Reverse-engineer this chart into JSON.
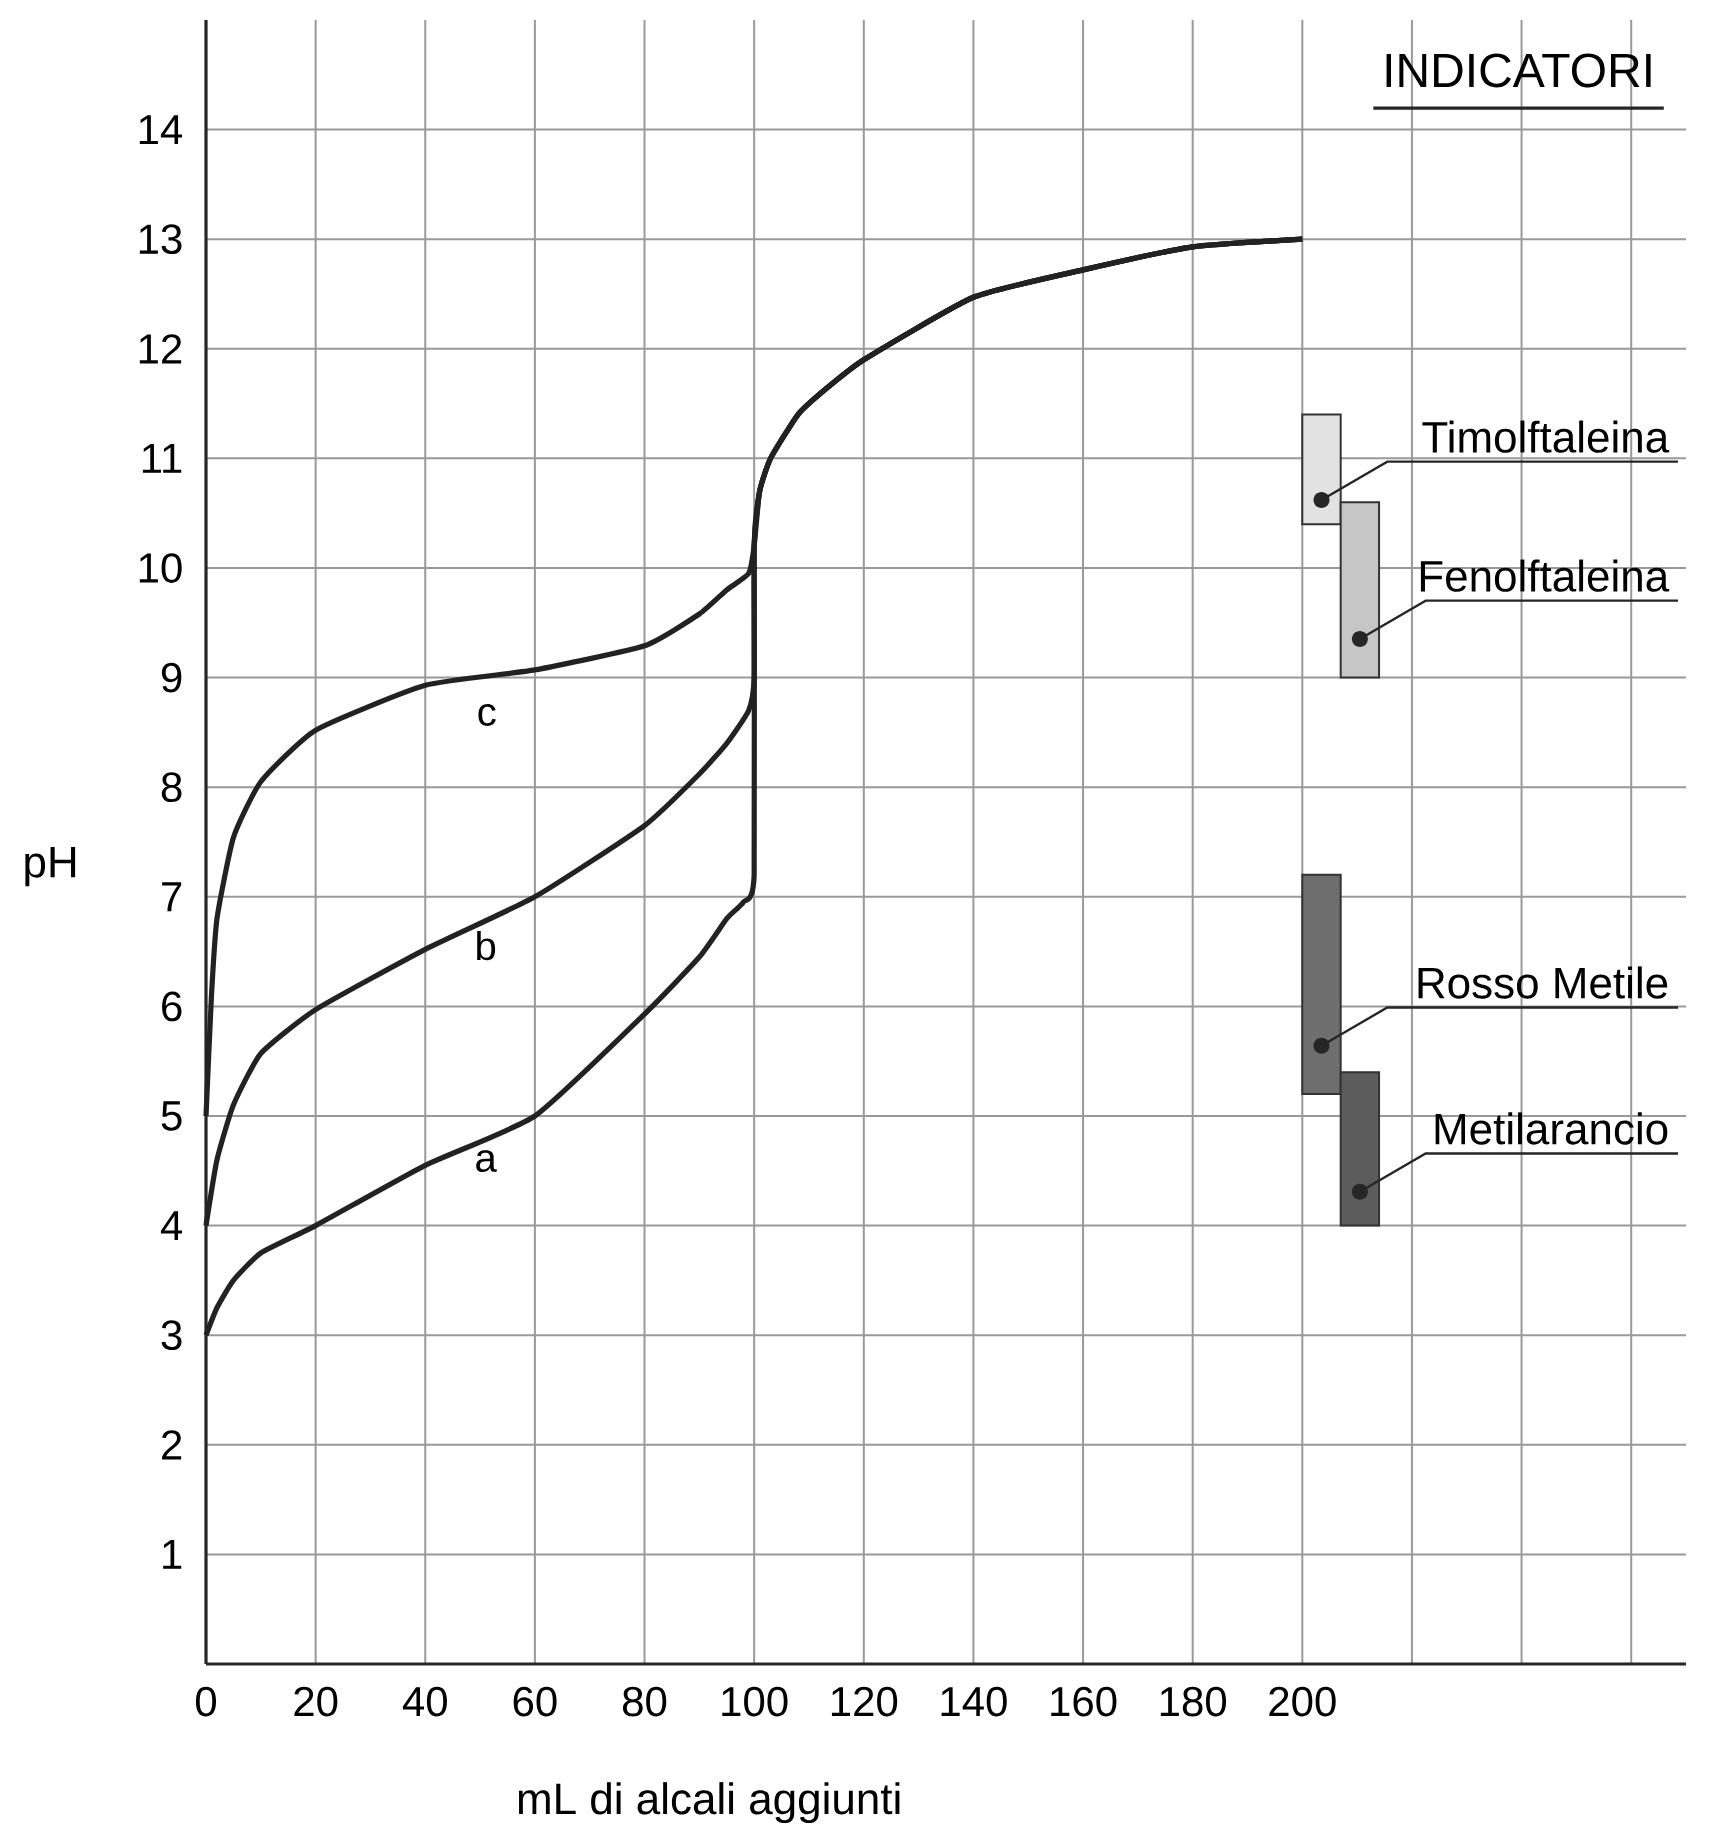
{
  "chart_data": {
    "type": "line",
    "xlabel": "mL di alcali aggiunti",
    "ylabel": "pH",
    "xlim": [
      0,
      270
    ],
    "ylim": [
      0,
      15
    ],
    "xticks": [
      0,
      20,
      40,
      60,
      80,
      100,
      120,
      140,
      160,
      180,
      200,
      {
        "value": 220,
        "label": null
      },
      {
        "value": 240,
        "label": null
      },
      {
        "value": 260,
        "label": null
      }
    ],
    "yticks": [
      1,
      2,
      3,
      4,
      5,
      6,
      7,
      8,
      9,
      10,
      11,
      12,
      13,
      14
    ],
    "grid": true,
    "annotations": [
      "INDICATORI"
    ],
    "series": [
      {
        "name": "a",
        "color": "#222222",
        "x": [
          0,
          2,
          5,
          10,
          20,
          40,
          60,
          80,
          90,
          95,
          98,
          100,
          100,
          101,
          103,
          108,
          113,
          120,
          140,
          160,
          180,
          200
        ],
        "values": [
          3.0,
          3.25,
          3.5,
          3.75,
          4.0,
          4.55,
          5.0,
          5.93,
          6.45,
          6.8,
          6.95,
          7.2,
          10.2,
          10.7,
          11.0,
          11.4,
          11.63,
          11.9,
          12.47,
          12.72,
          12.93,
          13.0
        ]
      },
      {
        "name": "b",
        "color": "#222222",
        "x": [
          0,
          2,
          5,
          10,
          20,
          40,
          60,
          80,
          90,
          95,
          99,
          100,
          100,
          101,
          103,
          108,
          113,
          120,
          140,
          160,
          180,
          200
        ],
        "values": [
          4.0,
          4.6,
          5.1,
          5.57,
          5.97,
          6.52,
          7.0,
          7.65,
          8.12,
          8.4,
          8.7,
          9.0,
          10.2,
          10.7,
          11.0,
          11.4,
          11.63,
          11.9,
          12.47,
          12.72,
          12.93,
          13.0
        ]
      },
      {
        "name": "c",
        "color": "#222222",
        "x": [
          0,
          1,
          2,
          5,
          10,
          20,
          40,
          60,
          80,
          90,
          95,
          99,
          100,
          101,
          103,
          108,
          113,
          120,
          140,
          160,
          180,
          200
        ],
        "values": [
          5.0,
          6.1,
          6.8,
          7.54,
          8.05,
          8.52,
          8.93,
          9.07,
          9.29,
          9.58,
          9.8,
          9.95,
          10.2,
          10.7,
          11.0,
          11.4,
          11.63,
          11.9,
          12.47,
          12.72,
          12.93,
          13.0
        ]
      },
      {
        "type": "bar",
        "name": "Timolftaleina",
        "color": "#e2e2e2",
        "x": [
          203.5
        ],
        "base": [
          10.4
        ],
        "values": [
          1.0
        ]
      },
      {
        "type": "bar",
        "name": "Fenolftaleina",
        "color": "#c6c6c6",
        "x": [
          210.5
        ],
        "base": [
          9.0
        ],
        "values": [
          1.6
        ]
      },
      {
        "type": "bar",
        "name": "Rosso Metile",
        "color": "#6e6e6e",
        "x": [
          203.5
        ],
        "base": [
          5.2
        ],
        "values": [
          2.0
        ]
      },
      {
        "type": "bar",
        "name": "Metilarancio",
        "color": "#5c5c5c",
        "x": [
          210.5
        ],
        "base": [
          4.0
        ],
        "values": [
          1.4
        ]
      }
    ]
  }
}
